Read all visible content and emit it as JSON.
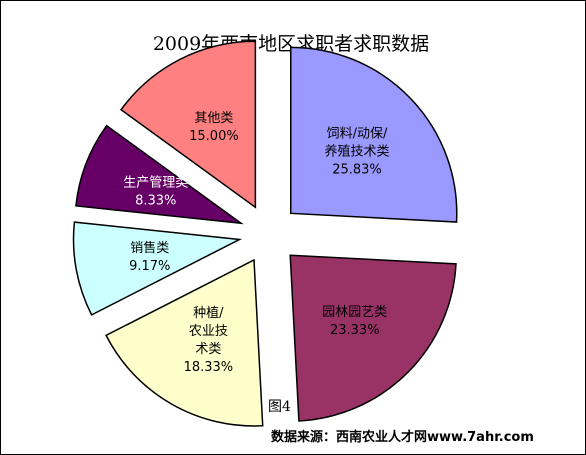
{
  "chart_data": {
    "type": "pie",
    "title": "2009年西南地区求职者求职数据",
    "slices": [
      {
        "label_lines": [
          "饲料/动保/",
          "养殖技术类"
        ],
        "value": 25.83,
        "value_label": "25.83%",
        "color": "#9999ff",
        "label_color": "#000000"
      },
      {
        "label_lines": [
          "园林园艺类"
        ],
        "value": 23.33,
        "value_label": "23.33%",
        "color": "#993366",
        "label_color": "#000000"
      },
      {
        "label_lines": [
          "种植/",
          "农业技",
          "术类"
        ],
        "value": 18.33,
        "value_label": "18.33%",
        "color": "#ffffcc",
        "label_color": "#000000"
      },
      {
        "label_lines": [
          "销售类"
        ],
        "value": 9.17,
        "value_label": "9.17%",
        "color": "#ccffff",
        "label_color": "#000000"
      },
      {
        "label_lines": [
          "生产管理类"
        ],
        "value": 8.33,
        "value_label": "8.33%",
        "color": "#660066",
        "label_color": "#ffffff"
      },
      {
        "label_lines": [
          "其他类"
        ],
        "value": 15.0,
        "value_label": "15.00%",
        "color": "#ff8080",
        "label_color": "#000000"
      }
    ],
    "start_angle_deg": 0,
    "exploded": true
  },
  "caption": "图4",
  "source": "数据来源：西南农业人才网www.7ahr.com"
}
